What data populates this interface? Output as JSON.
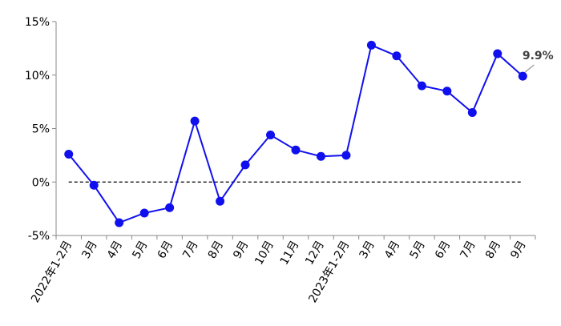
{
  "colors": {
    "series": "#1010ee",
    "axis": "#888888",
    "zero_line": "#000000",
    "label_text": "#404040",
    "leader_line": "#a6a6a6"
  },
  "chart_data": {
    "type": "line",
    "title": "",
    "xlabel": "",
    "ylabel": "",
    "categories": [
      "2022年1-2月",
      "3月",
      "4月",
      "5月",
      "6月",
      "7月",
      "8月",
      "9月",
      "10月",
      "11月",
      "12月",
      "2023年1-2月",
      "3月",
      "4月",
      "5月",
      "6月",
      "7月",
      "8月",
      "9月"
    ],
    "series": [
      {
        "values": [
          2.6,
          -0.3,
          -3.8,
          -2.9,
          -2.4,
          5.7,
          -1.8,
          1.6,
          4.4,
          3.0,
          2.4,
          2.5,
          12.8,
          11.8,
          9.0,
          8.5,
          6.5,
          12.0,
          9.9
        ]
      }
    ],
    "ylim": [
      -5,
      15
    ],
    "yticks": [
      -5,
      0,
      5,
      10,
      15
    ],
    "ytick_labels": [
      "-5%",
      "0%",
      "5%",
      "10%",
      "15%"
    ],
    "reference_line": {
      "y": 0,
      "style": "dashed"
    },
    "annotations": [
      {
        "index": 18,
        "text": "9.9%"
      }
    ],
    "grid": false,
    "legend": "none"
  }
}
